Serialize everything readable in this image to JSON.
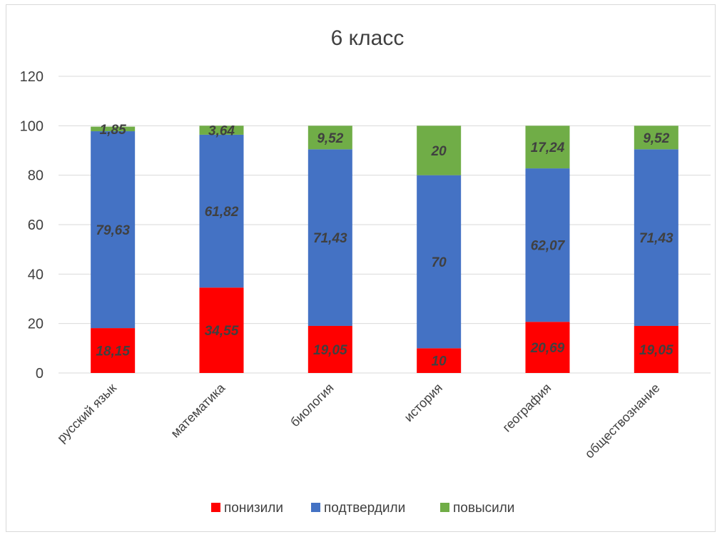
{
  "chart_data": {
    "type": "bar",
    "stacked": true,
    "title": "6 класс",
    "categories": [
      "русский язык",
      "математика",
      "биология",
      "история",
      "география",
      "обществознание"
    ],
    "series": [
      {
        "name": "понизили",
        "color": "#ff0000",
        "values": [
          18.15,
          34.55,
          19.05,
          10,
          20.69,
          19.05
        ],
        "labels": [
          "18,15",
          "34,55",
          "19,05",
          "10",
          "20,69",
          "19,05"
        ]
      },
      {
        "name": "подтвердили",
        "color": "#4472c4",
        "values": [
          79.63,
          61.82,
          71.43,
          70,
          62.07,
          71.43
        ],
        "labels": [
          "79,63",
          "61,82",
          "71,43",
          "70",
          "62,07",
          "71,43"
        ]
      },
      {
        "name": "повысили",
        "color": "#70ad47",
        "values": [
          1.85,
          3.64,
          9.52,
          20,
          17.24,
          9.52
        ],
        "labels": [
          "1,85",
          "3,64",
          "9,52",
          "20",
          "17,24",
          "9,52"
        ]
      }
    ],
    "ylim": [
      0,
      120
    ],
    "yticks": [
      "0",
      "20",
      "40",
      "60",
      "80",
      "100",
      "120"
    ],
    "grid": true,
    "legend": "bottom",
    "xlabel": "",
    "ylabel": ""
  }
}
